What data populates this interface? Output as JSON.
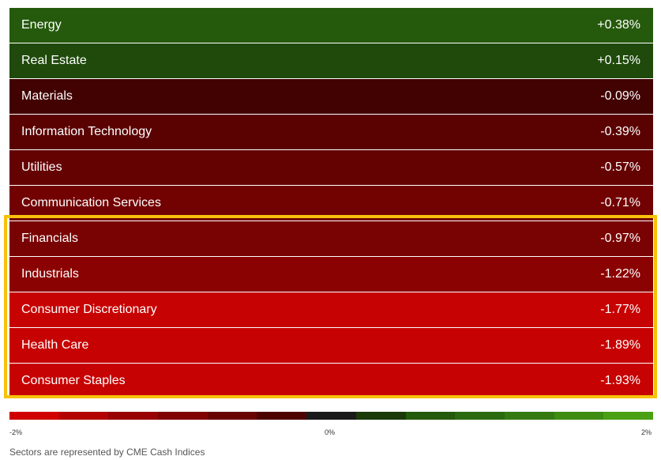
{
  "sectors": [
    {
      "name": "Energy",
      "change": "+0.38%",
      "color": "#255a0c"
    },
    {
      "name": "Real Estate",
      "change": "+0.15%",
      "color": "#1f4a0b"
    },
    {
      "name": "Materials",
      "change": "-0.09%",
      "color": "#420202"
    },
    {
      "name": "Information Technology",
      "change": "-0.39%",
      "color": "#5a0202"
    },
    {
      "name": "Utilities",
      "change": "-0.57%",
      "color": "#640202"
    },
    {
      "name": "Communication Services",
      "change": "-0.71%",
      "color": "#720202"
    },
    {
      "name": "Financials",
      "change": "-0.97%",
      "color": "#790202"
    },
    {
      "name": "Industrials",
      "change": "-1.22%",
      "color": "#8b0202"
    },
    {
      "name": "Consumer Discretionary",
      "change": "-1.77%",
      "color": "#c70202"
    },
    {
      "name": "Health Care",
      "change": "-1.89%",
      "color": "#c70202"
    },
    {
      "name": "Consumer Staples",
      "change": "-1.93%",
      "color": "#c70202"
    }
  ],
  "scale": {
    "colors": [
      "#d00000",
      "#b30202",
      "#990202",
      "#800202",
      "#690202",
      "#4d0202",
      "#1a1a1a",
      "#1a3a08",
      "#245a0c",
      "#2b6a0e",
      "#347a10",
      "#3f8c12",
      "#4aa014"
    ],
    "min_label": "-2%",
    "mid_label": "0%",
    "max_label": "2%"
  },
  "highlight_color": "#f7c10b",
  "footnote": "Sectors are represented by CME Cash Indices"
}
